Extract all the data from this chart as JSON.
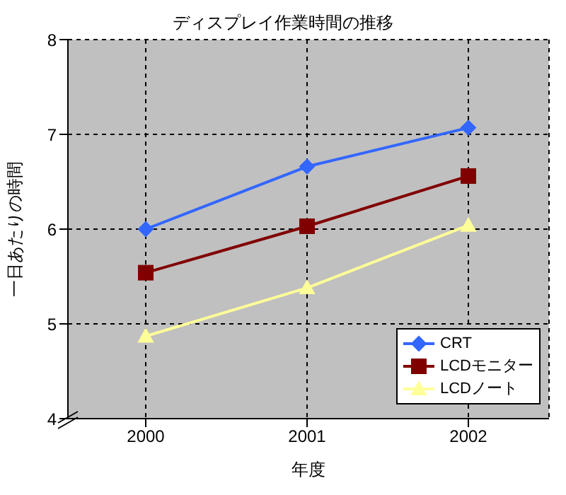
{
  "chart_data": {
    "type": "line",
    "title": "ディスプレイ作業時間の推移",
    "xlabel": "年度",
    "ylabel": "一日あたりの時間",
    "categories": [
      "2000",
      "2001",
      "2002"
    ],
    "series": [
      {
        "name": "CRT",
        "color": "#3366ff",
        "marker": "diamond",
        "values": [
          6.0,
          6.66,
          7.07
        ]
      },
      {
        "name": "LCDモニター",
        "color": "#800000",
        "marker": "square",
        "values": [
          5.54,
          6.03,
          6.56
        ]
      },
      {
        "name": "LCDノート",
        "color": "#ffff99",
        "marker": "triangle",
        "values": [
          4.87,
          5.38,
          6.04
        ]
      }
    ],
    "ylim": [
      4,
      8
    ],
    "yticks": [
      4,
      5,
      6,
      7,
      8
    ],
    "grid": true,
    "legend": "bottom right"
  }
}
